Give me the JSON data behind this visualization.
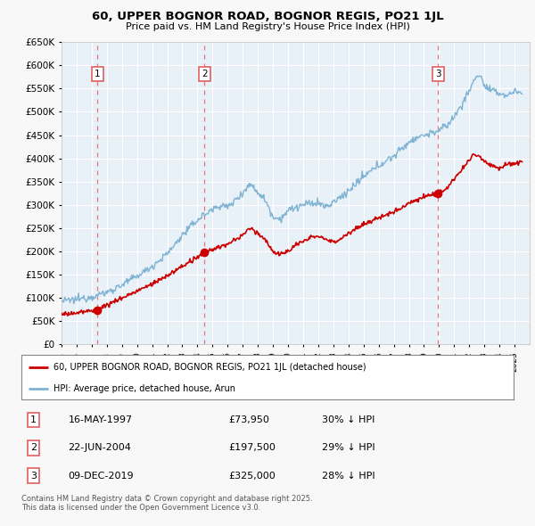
{
  "title": "60, UPPER BOGNOR ROAD, BOGNOR REGIS, PO21 1JL",
  "subtitle": "Price paid vs. HM Land Registry's House Price Index (HPI)",
  "legend_line1": "60, UPPER BOGNOR ROAD, BOGNOR REGIS, PO21 1JL (detached house)",
  "legend_line2": "HPI: Average price, detached house, Arun",
  "footnote": "Contains HM Land Registry data © Crown copyright and database right 2025.\nThis data is licensed under the Open Government Licence v3.0.",
  "transactions": [
    {
      "num": 1,
      "date": "16-MAY-1997",
      "price": 73950,
      "hpi_pct": "30% ↓ HPI",
      "year": 1997.37
    },
    {
      "num": 2,
      "date": "22-JUN-2004",
      "price": 197500,
      "hpi_pct": "29% ↓ HPI",
      "year": 2004.47
    },
    {
      "num": 3,
      "date": "09-DEC-2019",
      "price": 325000,
      "hpi_pct": "28% ↓ HPI",
      "year": 2019.93
    }
  ],
  "red_line_color": "#cc0000",
  "blue_line_color": "#7fb3d3",
  "plot_bg": "#e8f0f8",
  "grid_color": "#ffffff",
  "dashed_color": "#e06060",
  "ylim": [
    0,
    650000
  ],
  "ytick_step": 50000,
  "xmin": 1995,
  "xmax": 2026
}
